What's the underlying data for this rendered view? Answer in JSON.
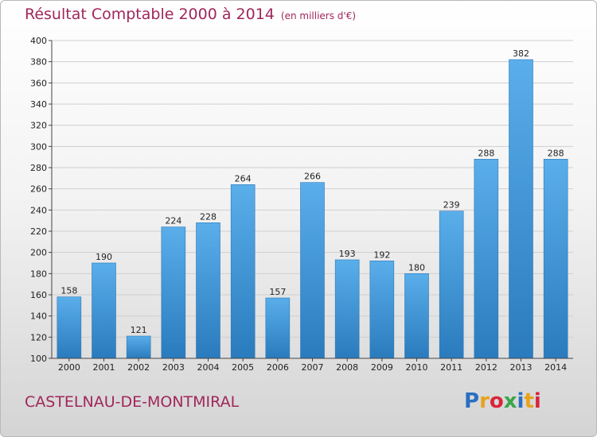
{
  "chart_data": {
    "type": "bar",
    "title": "Résultat Comptable 2000 à 2014",
    "subtitle": "(en milliers d'€)",
    "categories": [
      "2000",
      "2001",
      "2002",
      "2003",
      "2004",
      "2005",
      "2006",
      "2007",
      "2008",
      "2009",
      "2010",
      "2011",
      "2012",
      "2013",
      "2014"
    ],
    "values": [
      158,
      190,
      121,
      224,
      228,
      264,
      157,
      266,
      193,
      192,
      180,
      239,
      288,
      382,
      288
    ],
    "ylim": [
      100,
      400
    ],
    "yticks": [
      100,
      120,
      140,
      160,
      180,
      200,
      220,
      240,
      260,
      280,
      300,
      320,
      340,
      360,
      380,
      400
    ],
    "grid": true,
    "bar_color": "#3a8fd0"
  },
  "footer": {
    "place_name": "CASTELNAU-DE-MONTMIRAL",
    "logo_text": "Proxiti",
    "logo_colors": [
      "#2a6fc0",
      "#e8a21c",
      "#d8263a",
      "#3aa64a",
      "#2a6fc0",
      "#e8a21c",
      "#d8263a"
    ]
  }
}
